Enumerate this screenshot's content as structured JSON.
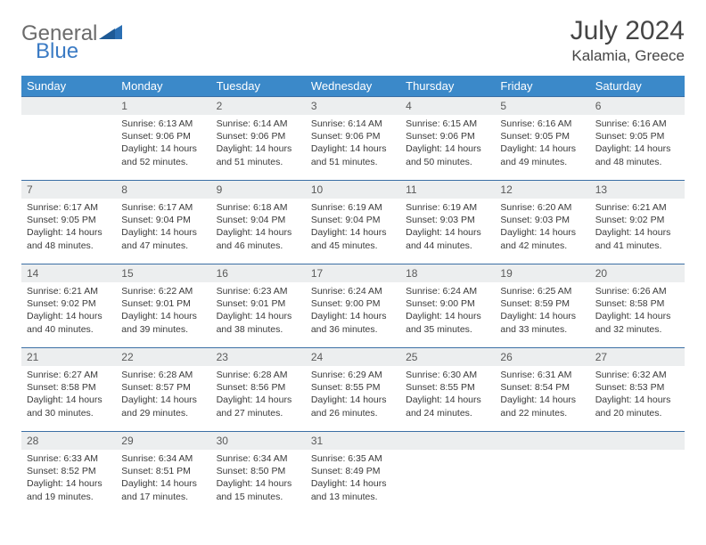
{
  "brand": {
    "general": "General",
    "blue": "Blue"
  },
  "title": "July 2024",
  "location": "Kalamia, Greece",
  "colors": {
    "header_bg": "#3b89c9",
    "header_text": "#ffffff",
    "daynum_bg": "#eceeef",
    "row_border": "#3b6fa5",
    "body_text": "#3a3a3a",
    "title_text": "#454545",
    "logo_gray": "#6b6b6b",
    "logo_blue": "#3b7bc4"
  },
  "typography": {
    "title_fontsize": 30,
    "location_fontsize": 17,
    "dayname_fontsize": 13,
    "daynum_fontsize": 12,
    "body_fontsize": 10.5
  },
  "day_names": [
    "Sunday",
    "Monday",
    "Tuesday",
    "Wednesday",
    "Thursday",
    "Friday",
    "Saturday"
  ],
  "weeks": [
    {
      "nums": [
        "",
        "1",
        "2",
        "3",
        "4",
        "5",
        "6"
      ],
      "cells": [
        null,
        {
          "sunrise": "Sunrise: 6:13 AM",
          "sunset": "Sunset: 9:06 PM",
          "day1": "Daylight: 14 hours",
          "day2": "and 52 minutes."
        },
        {
          "sunrise": "Sunrise: 6:14 AM",
          "sunset": "Sunset: 9:06 PM",
          "day1": "Daylight: 14 hours",
          "day2": "and 51 minutes."
        },
        {
          "sunrise": "Sunrise: 6:14 AM",
          "sunset": "Sunset: 9:06 PM",
          "day1": "Daylight: 14 hours",
          "day2": "and 51 minutes."
        },
        {
          "sunrise": "Sunrise: 6:15 AM",
          "sunset": "Sunset: 9:06 PM",
          "day1": "Daylight: 14 hours",
          "day2": "and 50 minutes."
        },
        {
          "sunrise": "Sunrise: 6:16 AM",
          "sunset": "Sunset: 9:05 PM",
          "day1": "Daylight: 14 hours",
          "day2": "and 49 minutes."
        },
        {
          "sunrise": "Sunrise: 6:16 AM",
          "sunset": "Sunset: 9:05 PM",
          "day1": "Daylight: 14 hours",
          "day2": "and 48 minutes."
        }
      ]
    },
    {
      "nums": [
        "7",
        "8",
        "9",
        "10",
        "11",
        "12",
        "13"
      ],
      "cells": [
        {
          "sunrise": "Sunrise: 6:17 AM",
          "sunset": "Sunset: 9:05 PM",
          "day1": "Daylight: 14 hours",
          "day2": "and 48 minutes."
        },
        {
          "sunrise": "Sunrise: 6:17 AM",
          "sunset": "Sunset: 9:04 PM",
          "day1": "Daylight: 14 hours",
          "day2": "and 47 minutes."
        },
        {
          "sunrise": "Sunrise: 6:18 AM",
          "sunset": "Sunset: 9:04 PM",
          "day1": "Daylight: 14 hours",
          "day2": "and 46 minutes."
        },
        {
          "sunrise": "Sunrise: 6:19 AM",
          "sunset": "Sunset: 9:04 PM",
          "day1": "Daylight: 14 hours",
          "day2": "and 45 minutes."
        },
        {
          "sunrise": "Sunrise: 6:19 AM",
          "sunset": "Sunset: 9:03 PM",
          "day1": "Daylight: 14 hours",
          "day2": "and 44 minutes."
        },
        {
          "sunrise": "Sunrise: 6:20 AM",
          "sunset": "Sunset: 9:03 PM",
          "day1": "Daylight: 14 hours",
          "day2": "and 42 minutes."
        },
        {
          "sunrise": "Sunrise: 6:21 AM",
          "sunset": "Sunset: 9:02 PM",
          "day1": "Daylight: 14 hours",
          "day2": "and 41 minutes."
        }
      ]
    },
    {
      "nums": [
        "14",
        "15",
        "16",
        "17",
        "18",
        "19",
        "20"
      ],
      "cells": [
        {
          "sunrise": "Sunrise: 6:21 AM",
          "sunset": "Sunset: 9:02 PM",
          "day1": "Daylight: 14 hours",
          "day2": "and 40 minutes."
        },
        {
          "sunrise": "Sunrise: 6:22 AM",
          "sunset": "Sunset: 9:01 PM",
          "day1": "Daylight: 14 hours",
          "day2": "and 39 minutes."
        },
        {
          "sunrise": "Sunrise: 6:23 AM",
          "sunset": "Sunset: 9:01 PM",
          "day1": "Daylight: 14 hours",
          "day2": "and 38 minutes."
        },
        {
          "sunrise": "Sunrise: 6:24 AM",
          "sunset": "Sunset: 9:00 PM",
          "day1": "Daylight: 14 hours",
          "day2": "and 36 minutes."
        },
        {
          "sunrise": "Sunrise: 6:24 AM",
          "sunset": "Sunset: 9:00 PM",
          "day1": "Daylight: 14 hours",
          "day2": "and 35 minutes."
        },
        {
          "sunrise": "Sunrise: 6:25 AM",
          "sunset": "Sunset: 8:59 PM",
          "day1": "Daylight: 14 hours",
          "day2": "and 33 minutes."
        },
        {
          "sunrise": "Sunrise: 6:26 AM",
          "sunset": "Sunset: 8:58 PM",
          "day1": "Daylight: 14 hours",
          "day2": "and 32 minutes."
        }
      ]
    },
    {
      "nums": [
        "21",
        "22",
        "23",
        "24",
        "25",
        "26",
        "27"
      ],
      "cells": [
        {
          "sunrise": "Sunrise: 6:27 AM",
          "sunset": "Sunset: 8:58 PM",
          "day1": "Daylight: 14 hours",
          "day2": "and 30 minutes."
        },
        {
          "sunrise": "Sunrise: 6:28 AM",
          "sunset": "Sunset: 8:57 PM",
          "day1": "Daylight: 14 hours",
          "day2": "and 29 minutes."
        },
        {
          "sunrise": "Sunrise: 6:28 AM",
          "sunset": "Sunset: 8:56 PM",
          "day1": "Daylight: 14 hours",
          "day2": "and 27 minutes."
        },
        {
          "sunrise": "Sunrise: 6:29 AM",
          "sunset": "Sunset: 8:55 PM",
          "day1": "Daylight: 14 hours",
          "day2": "and 26 minutes."
        },
        {
          "sunrise": "Sunrise: 6:30 AM",
          "sunset": "Sunset: 8:55 PM",
          "day1": "Daylight: 14 hours",
          "day2": "and 24 minutes."
        },
        {
          "sunrise": "Sunrise: 6:31 AM",
          "sunset": "Sunset: 8:54 PM",
          "day1": "Daylight: 14 hours",
          "day2": "and 22 minutes."
        },
        {
          "sunrise": "Sunrise: 6:32 AM",
          "sunset": "Sunset: 8:53 PM",
          "day1": "Daylight: 14 hours",
          "day2": "and 20 minutes."
        }
      ]
    },
    {
      "nums": [
        "28",
        "29",
        "30",
        "31",
        "",
        "",
        ""
      ],
      "cells": [
        {
          "sunrise": "Sunrise: 6:33 AM",
          "sunset": "Sunset: 8:52 PM",
          "day1": "Daylight: 14 hours",
          "day2": "and 19 minutes."
        },
        {
          "sunrise": "Sunrise: 6:34 AM",
          "sunset": "Sunset: 8:51 PM",
          "day1": "Daylight: 14 hours",
          "day2": "and 17 minutes."
        },
        {
          "sunrise": "Sunrise: 6:34 AM",
          "sunset": "Sunset: 8:50 PM",
          "day1": "Daylight: 14 hours",
          "day2": "and 15 minutes."
        },
        {
          "sunrise": "Sunrise: 6:35 AM",
          "sunset": "Sunset: 8:49 PM",
          "day1": "Daylight: 14 hours",
          "day2": "and 13 minutes."
        },
        null,
        null,
        null
      ]
    }
  ]
}
